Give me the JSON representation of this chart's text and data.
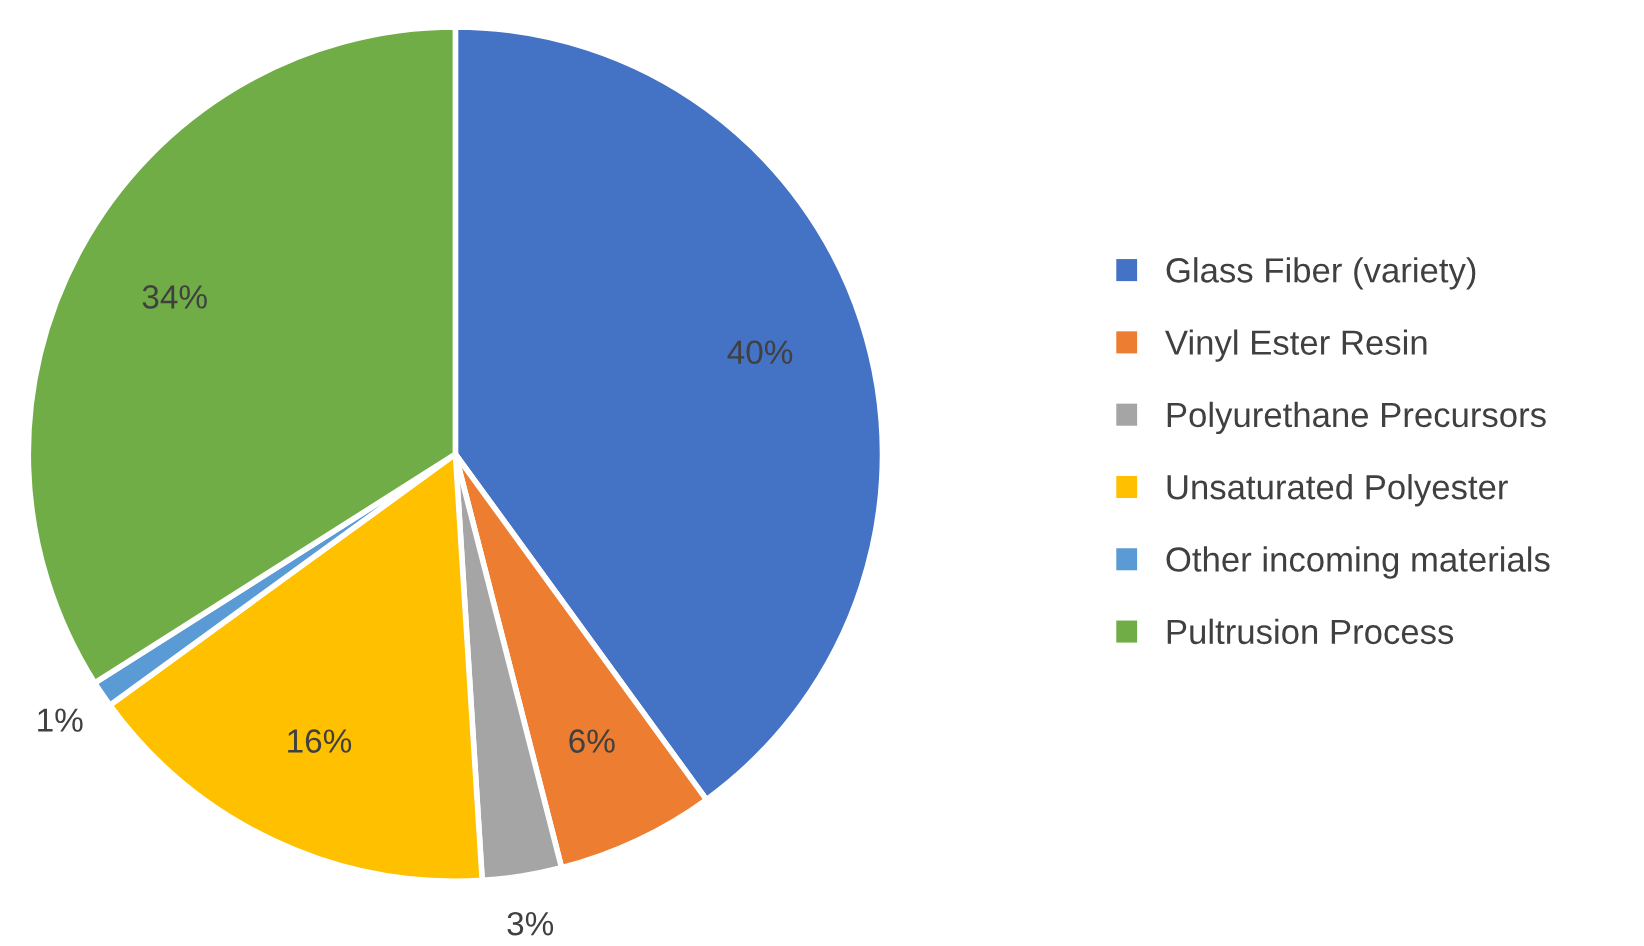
{
  "chart_data": {
    "type": "pie",
    "categories": [
      "Glass Fiber (variety)",
      "Vinyl Ester Resin",
      "Polyurethane Precursors",
      "Unsaturated Polyester",
      "Other incoming materials",
      "Pultrusion Process"
    ],
    "values": [
      40,
      6,
      3,
      16,
      1,
      34
    ],
    "value_labels": [
      "40%",
      "6%",
      "3%",
      "16%",
      "1%",
      "34%"
    ],
    "colors": [
      "#4472c4",
      "#ed7d31",
      "#a5a5a5",
      "#ffc000",
      "#5b9bd5",
      "#70ad47"
    ],
    "legend": "right"
  }
}
